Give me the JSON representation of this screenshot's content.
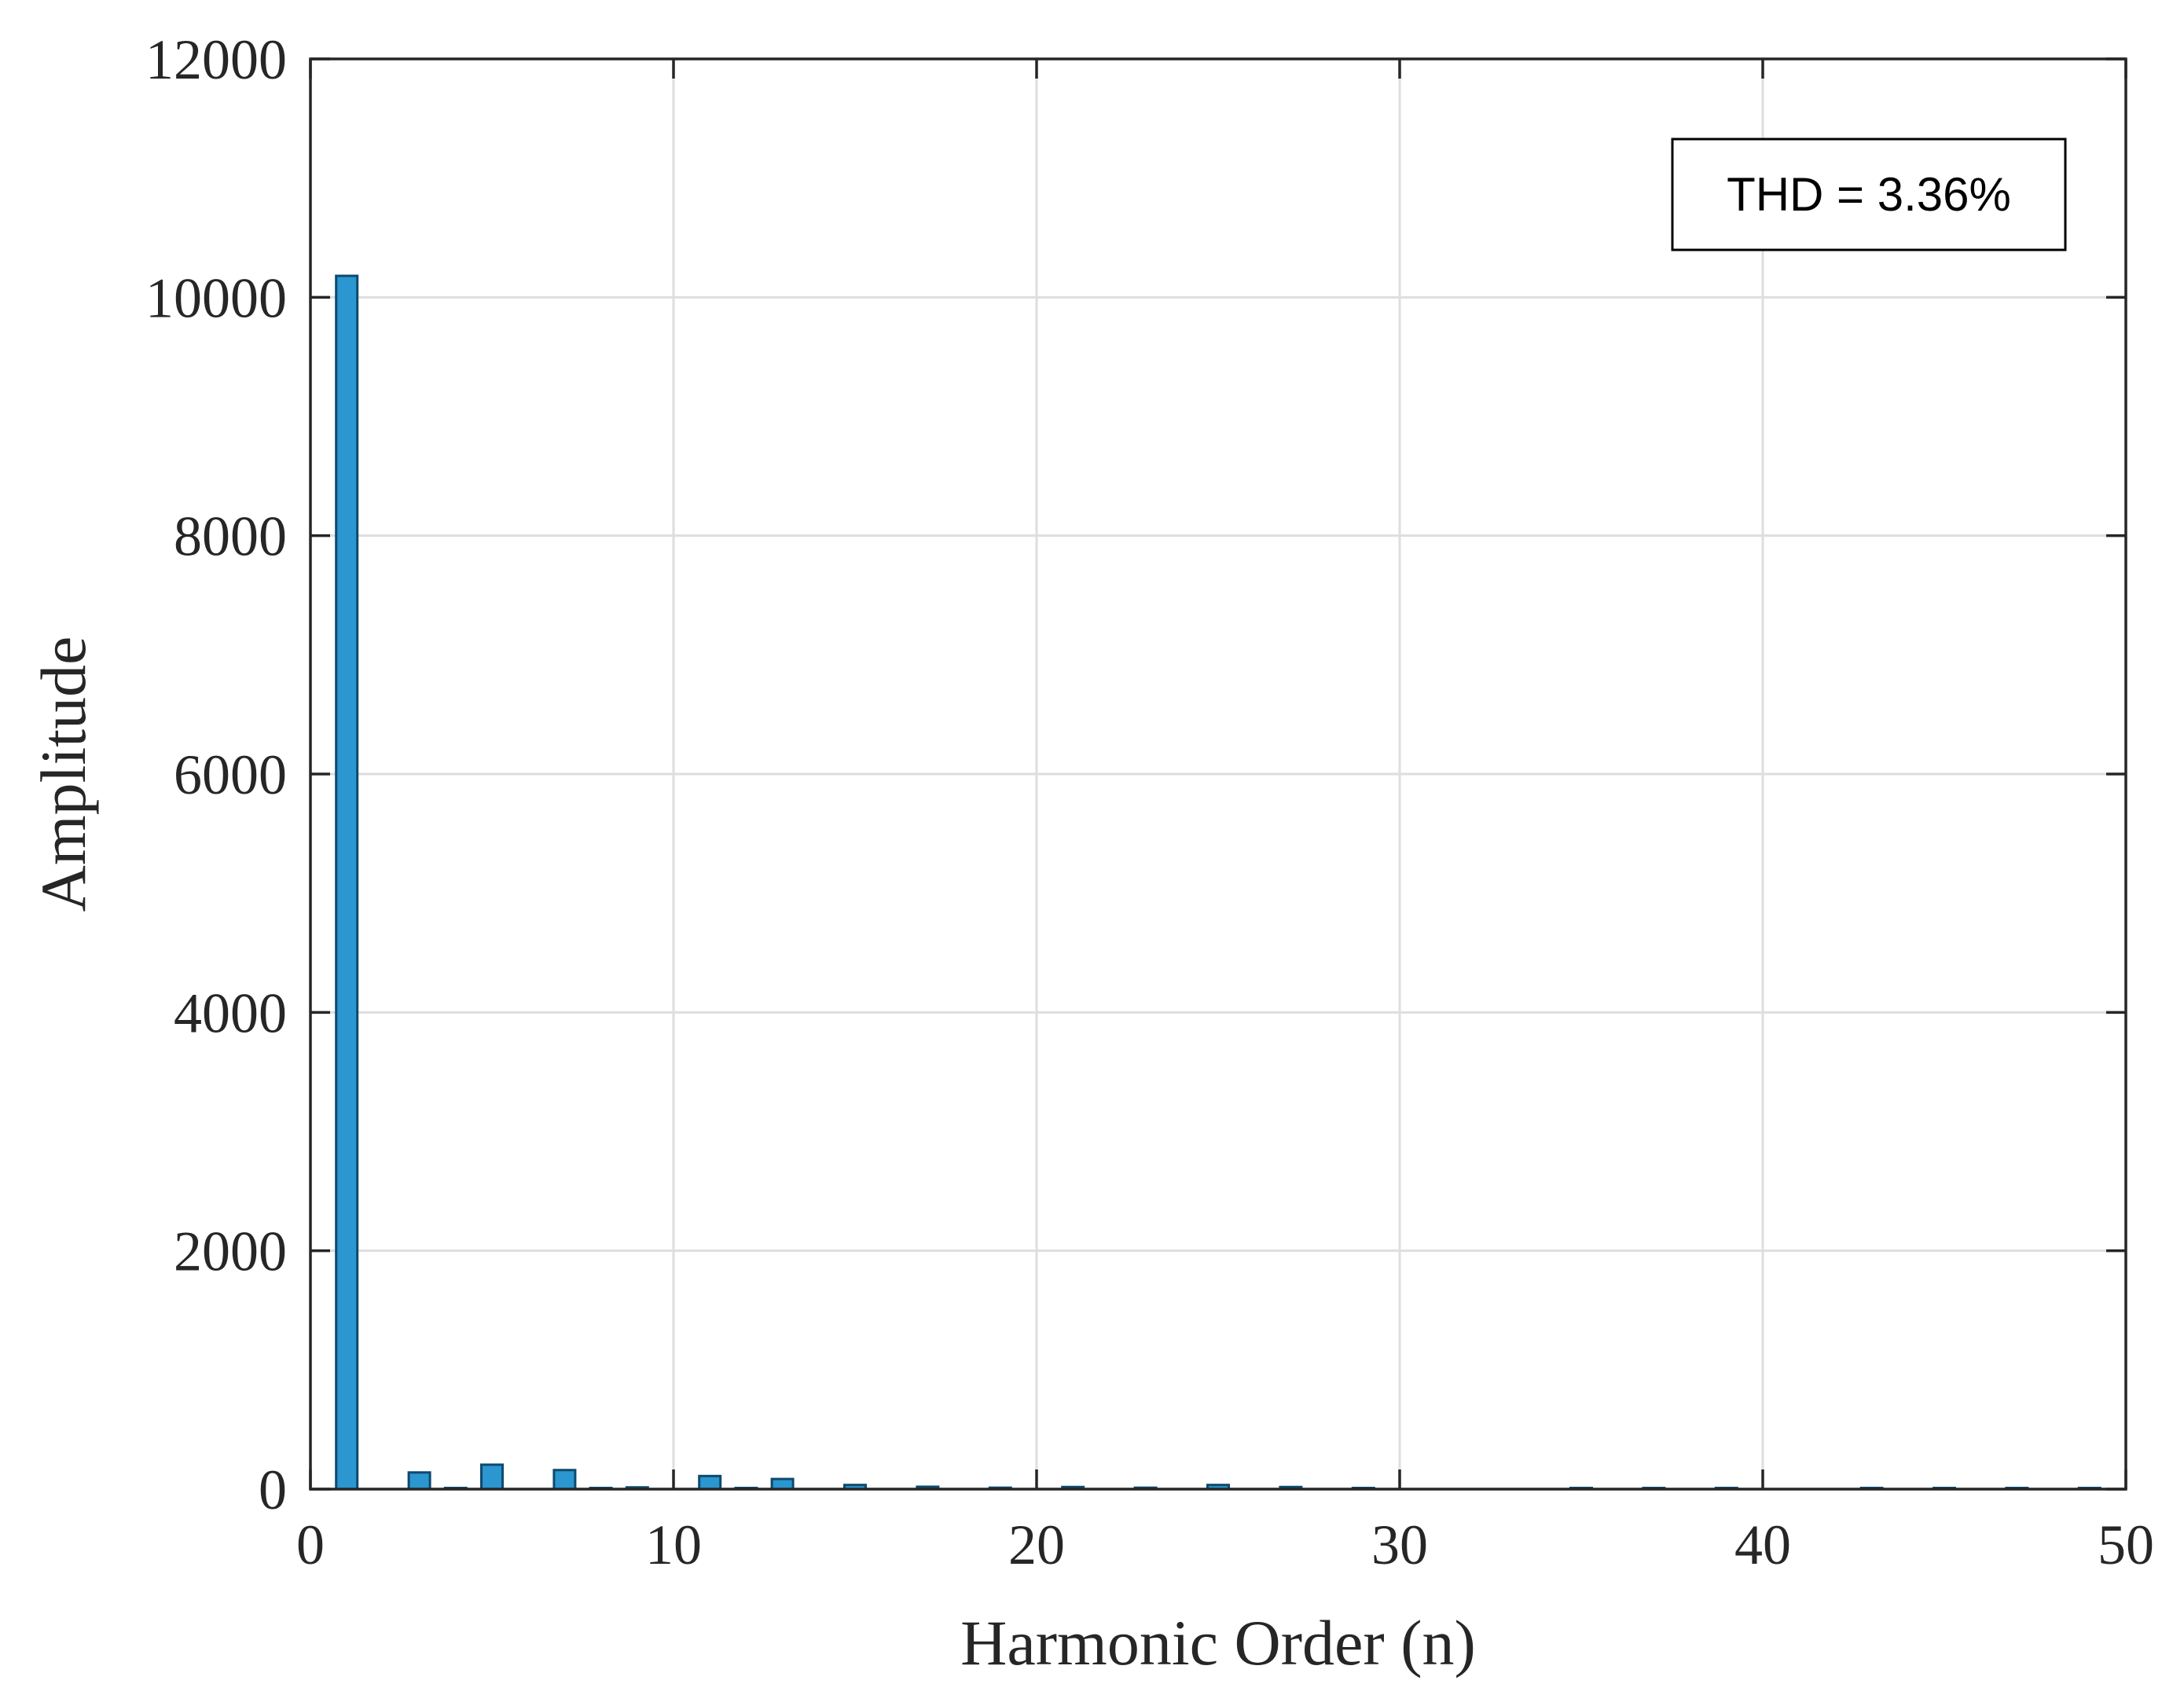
{
  "chart_data": {
    "type": "bar",
    "xlabel": "Harmonic Order (n)",
    "ylabel": "Amplitude",
    "xlim": [
      0,
      50
    ],
    "ylim": [
      0,
      12000
    ],
    "xticks": [
      0,
      10,
      20,
      30,
      40,
      50
    ],
    "yticks": [
      0,
      2000,
      4000,
      6000,
      8000,
      10000,
      12000
    ],
    "grid": true,
    "bar_color": "#2b96d0",
    "bar_edge_color": "#0d4a6e",
    "annotation": {
      "text": "THD = 3.36%",
      "placement": "top-right"
    },
    "x": [
      1,
      3,
      4,
      5,
      7,
      8,
      9,
      11,
      12,
      13,
      15,
      17,
      19,
      21,
      23,
      25,
      27,
      29,
      35,
      37,
      39,
      43,
      45,
      47,
      49
    ],
    "values": [
      10180,
      140,
      5,
      205,
      160,
      5,
      15,
      110,
      5,
      85,
      35,
      20,
      12,
      18,
      12,
      35,
      18,
      8,
      10,
      6,
      10,
      10,
      6,
      6,
      6
    ]
  }
}
